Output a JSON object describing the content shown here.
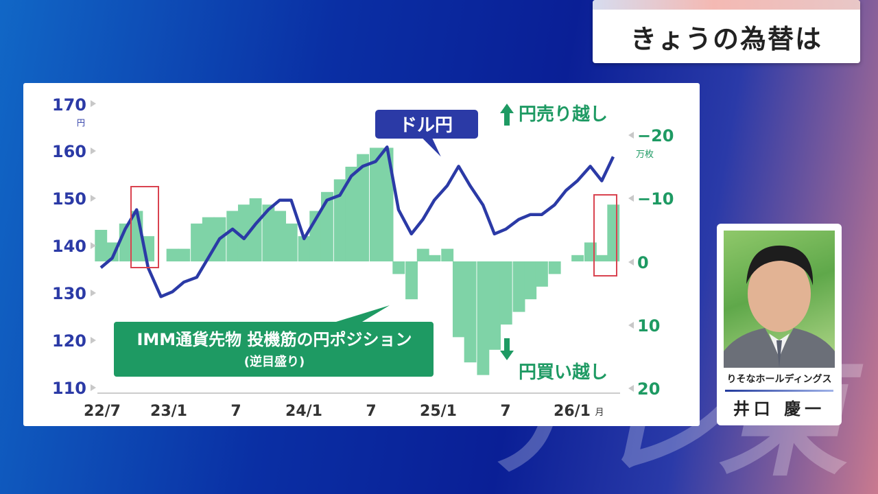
{
  "header": {
    "title": "きょうの為替は"
  },
  "watermark": {
    "text": "テレ東"
  },
  "colors": {
    "usdjpy_line": "#2b3aa6",
    "position_fill": "#7fd3a7",
    "label_green": "#1e9a63",
    "highlight_box": "#d9424f"
  },
  "person": {
    "affiliation": "りそなホールディングス",
    "name": "井口 慶一"
  },
  "chart_data": {
    "type": "line",
    "x_labels": [
      "22/7",
      "23/1",
      "7",
      "24/1",
      "7",
      "25/1",
      "7",
      "26/1"
    ],
    "x_label_suffix": "月",
    "left_axis": {
      "ticks": [
        "170",
        "160",
        "150",
        "140",
        "130",
        "120",
        "110"
      ],
      "unit": "円",
      "range": [
        110,
        170
      ]
    },
    "right_axis": {
      "ticks": [
        "−20",
        "−10",
        "0",
        "10",
        "20"
      ],
      "unit": "万枚",
      "range": [
        -20,
        20
      ]
    },
    "line_label": "ドル円",
    "area_label": "IMM通貨先物 投機筋の円ポジション",
    "area_sublabel": "(逆目盛り)",
    "annotation_top": "円売り越し",
    "annotation_bottom": "円買い越し",
    "series": [
      {
        "name": "ドル円",
        "x": [
          2022.5,
          2022.58,
          2022.67,
          2022.75,
          2022.83,
          2022.92,
          2023.0,
          2023.08,
          2023.17,
          2023.25,
          2023.33,
          2023.42,
          2023.5,
          2023.58,
          2023.67,
          2023.75,
          2023.83,
          2023.92,
          2024.0,
          2024.08,
          2024.17,
          2024.25,
          2024.33,
          2024.42,
          2024.5,
          2024.58,
          2024.67,
          2024.75,
          2024.83,
          2024.92,
          2025.0,
          2025.08,
          2025.17,
          2025.25,
          2025.33,
          2025.42,
          2025.5,
          2025.58,
          2025.67,
          2025.75,
          2025.83,
          2025.92,
          2026.0,
          2026.08
        ],
        "values": [
          136,
          138,
          144,
          148,
          136,
          130,
          131,
          133,
          134,
          138,
          142,
          144,
          142,
          145,
          148,
          150,
          150,
          142,
          146,
          150,
          151,
          155,
          157,
          158,
          161,
          148,
          143,
          146,
          150,
          153,
          157,
          153,
          149,
          143,
          144,
          146,
          147,
          147,
          149,
          152,
          154,
          157,
          154,
          159
        ]
      },
      {
        "name": "IMM通貨先物 投機筋の円ポジション",
        "x": [
          2022.5,
          2022.58,
          2022.67,
          2022.75,
          2022.83,
          2022.92,
          2023.0,
          2023.08,
          2023.17,
          2023.25,
          2023.33,
          2023.42,
          2023.5,
          2023.58,
          2023.67,
          2023.75,
          2023.83,
          2023.92,
          2024.0,
          2024.08,
          2024.17,
          2024.25,
          2024.33,
          2024.42,
          2024.5,
          2024.58,
          2024.67,
          2024.75,
          2024.83,
          2024.92,
          2025.0,
          2025.08,
          2025.17,
          2025.25,
          2025.33,
          2025.42,
          2025.5,
          2025.58,
          2025.67,
          2025.75,
          2025.83,
          2025.92,
          2026.0,
          2026.08
        ],
        "values": [
          -5,
          -3,
          -6,
          -8,
          -4,
          0,
          -2,
          -2,
          -6,
          -7,
          -7,
          -8,
          -9,
          -10,
          -9,
          -8,
          -6,
          -4,
          -8,
          -11,
          -13,
          -15,
          -17,
          -18,
          -18,
          2,
          6,
          -2,
          -1,
          -2,
          12,
          16,
          18,
          14,
          10,
          8,
          6,
          4,
          2,
          0,
          -1,
          -3,
          -1,
          -9
        ]
      }
    ]
  }
}
